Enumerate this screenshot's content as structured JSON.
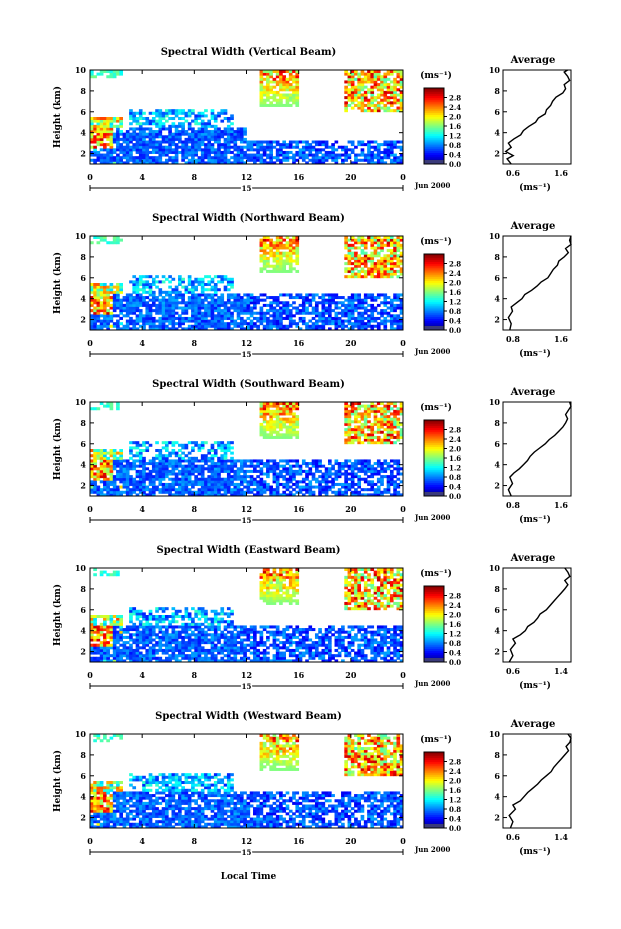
{
  "figure": {
    "xlabel": "Local Time",
    "date_label": "Jun 2000",
    "day_label": "15",
    "ylabel": "Height (km)",
    "avg_title": "Average",
    "units": "(ms⁻¹)"
  },
  "chart_data": [
    {
      "type": "heatmap",
      "title": "Spectral Width (Vertical Beam)",
      "xlim": [
        0,
        24
      ],
      "xticks": [
        "0",
        "4",
        "8",
        "12",
        "16",
        "20",
        "0"
      ],
      "ylim": [
        1,
        10
      ],
      "yticks": [
        "2",
        "4",
        "6",
        "8",
        "10"
      ],
      "colorbar": {
        "ticks": [
          "0.0",
          "0.4",
          "0.8",
          "1.2",
          "1.6",
          "2.0",
          "2.4",
          "2.8"
        ],
        "range": [
          0,
          3.2
        ]
      },
      "average_profile": {
        "xlim": [
          0.6,
          1.6
        ],
        "xticks": [
          "0.6",
          "1.6"
        ],
        "yticks": [
          "2",
          "4",
          "6",
          "8",
          "10"
        ],
        "points": [
          [
            0.72,
            1
          ],
          [
            0.66,
            1.5
          ],
          [
            0.75,
            1.8
          ],
          [
            0.64,
            2.2
          ],
          [
            0.72,
            2.6
          ],
          [
            0.68,
            3
          ],
          [
            0.76,
            3.4
          ],
          [
            0.86,
            3.8
          ],
          [
            0.9,
            4.2
          ],
          [
            0.98,
            4.6
          ],
          [
            1.08,
            5
          ],
          [
            1.12,
            5.4
          ],
          [
            1.22,
            5.8
          ],
          [
            1.24,
            6.2
          ],
          [
            1.3,
            6.6
          ],
          [
            1.33,
            7
          ],
          [
            1.38,
            7.4
          ],
          [
            1.48,
            7.8
          ],
          [
            1.52,
            8.2
          ],
          [
            1.5,
            8.6
          ],
          [
            1.58,
            9
          ],
          [
            1.55,
            9.4
          ],
          [
            1.5,
            9.8
          ],
          [
            1.55,
            10
          ]
        ]
      }
    },
    {
      "type": "heatmap",
      "title": "Spectral Width (Northward Beam)",
      "xlim": [
        0,
        24
      ],
      "xticks": [
        "0",
        "4",
        "8",
        "12",
        "16",
        "20",
        "0"
      ],
      "ylim": [
        1,
        10
      ],
      "yticks": [
        "2",
        "4",
        "6",
        "8",
        "10"
      ],
      "colorbar": {
        "ticks": [
          "0.0",
          "0.4",
          "0.8",
          "1.2",
          "1.6",
          "2.0",
          "2.4",
          "2.8"
        ],
        "range": [
          0,
          3.2
        ]
      },
      "average_profile": {
        "xlim": [
          0.6,
          1.6
        ],
        "xticks": [
          "0.8",
          "1.6"
        ],
        "yticks": [
          "2",
          "4",
          "6",
          "8",
          "10"
        ],
        "points": [
          [
            0.7,
            1
          ],
          [
            0.72,
            1.6
          ],
          [
            0.68,
            2.2
          ],
          [
            0.74,
            2.8
          ],
          [
            0.72,
            3.2
          ],
          [
            0.8,
            3.6
          ],
          [
            0.88,
            4
          ],
          [
            0.92,
            4.4
          ],
          [
            1.02,
            4.8
          ],
          [
            1.1,
            5.2
          ],
          [
            1.16,
            5.6
          ],
          [
            1.26,
            6
          ],
          [
            1.3,
            6.4
          ],
          [
            1.34,
            6.8
          ],
          [
            1.4,
            7.2
          ],
          [
            1.42,
            7.6
          ],
          [
            1.5,
            8
          ],
          [
            1.56,
            8.4
          ],
          [
            1.52,
            8.8
          ],
          [
            1.6,
            9.2
          ],
          [
            1.58,
            9.6
          ],
          [
            1.6,
            10
          ]
        ]
      }
    },
    {
      "type": "heatmap",
      "title": "Spectral Width (Southward Beam)",
      "xlim": [
        0,
        24
      ],
      "xticks": [
        "0",
        "4",
        "8",
        "12",
        "16",
        "20",
        "0"
      ],
      "ylim": [
        1,
        10
      ],
      "yticks": [
        "2",
        "4",
        "6",
        "8",
        "10"
      ],
      "colorbar": {
        "ticks": [
          "0.0",
          "0.4",
          "0.8",
          "1.2",
          "1.6",
          "2.0",
          "2.4",
          "2.8"
        ],
        "range": [
          0,
          3.2
        ]
      },
      "average_profile": {
        "xlim": [
          0.6,
          1.6
        ],
        "xticks": [
          "0.8",
          "1.6"
        ],
        "yticks": [
          "2",
          "4",
          "6",
          "8",
          "10"
        ],
        "points": [
          [
            0.72,
            1
          ],
          [
            0.68,
            1.6
          ],
          [
            0.74,
            2.2
          ],
          [
            0.7,
            2.8
          ],
          [
            0.76,
            3.2
          ],
          [
            0.84,
            3.6
          ],
          [
            0.9,
            4
          ],
          [
            0.96,
            4.4
          ],
          [
            1.0,
            4.8
          ],
          [
            1.06,
            5.2
          ],
          [
            1.14,
            5.6
          ],
          [
            1.22,
            6
          ],
          [
            1.28,
            6.4
          ],
          [
            1.36,
            6.8
          ],
          [
            1.42,
            7.2
          ],
          [
            1.48,
            7.6
          ],
          [
            1.52,
            8
          ],
          [
            1.55,
            8.4
          ],
          [
            1.52,
            8.8
          ],
          [
            1.56,
            9.2
          ],
          [
            1.6,
            9.6
          ],
          [
            1.58,
            10
          ]
        ]
      }
    },
    {
      "type": "heatmap",
      "title": "Spectral Width (Eastward Beam)",
      "xlim": [
        0,
        24
      ],
      "xticks": [
        "0",
        "4",
        "8",
        "12",
        "16",
        "20",
        "0"
      ],
      "ylim": [
        1,
        10
      ],
      "yticks": [
        "2",
        "4",
        "6",
        "8",
        "10"
      ],
      "colorbar": {
        "ticks": [
          "0.0",
          "0.4",
          "0.8",
          "1.2",
          "1.6",
          "2.0",
          "2.4",
          "2.8"
        ],
        "range": [
          0,
          3.2
        ]
      },
      "average_profile": {
        "xlim": [
          0.5,
          1.6
        ],
        "xticks": [
          "0.6",
          "1.4"
        ],
        "yticks": [
          "2",
          "4",
          "6",
          "8",
          "10"
        ],
        "points": [
          [
            0.6,
            1
          ],
          [
            0.66,
            1.6
          ],
          [
            0.62,
            2.2
          ],
          [
            0.7,
            2.8
          ],
          [
            0.66,
            3.2
          ],
          [
            0.78,
            3.6
          ],
          [
            0.86,
            4
          ],
          [
            0.9,
            4.4
          ],
          [
            1.0,
            4.8
          ],
          [
            1.06,
            5.2
          ],
          [
            1.1,
            5.6
          ],
          [
            1.2,
            6
          ],
          [
            1.26,
            6.4
          ],
          [
            1.32,
            6.8
          ],
          [
            1.38,
            7.2
          ],
          [
            1.44,
            7.6
          ],
          [
            1.5,
            8
          ],
          [
            1.55,
            8.4
          ],
          [
            1.5,
            8.8
          ],
          [
            1.58,
            9.2
          ],
          [
            1.55,
            9.6
          ],
          [
            1.5,
            10
          ]
        ]
      }
    },
    {
      "type": "heatmap",
      "title": "Spectral Width (Westward Beam)",
      "xlim": [
        0,
        24
      ],
      "xticks": [
        "0",
        "4",
        "8",
        "12",
        "16",
        "20",
        "0"
      ],
      "ylim": [
        1,
        10
      ],
      "yticks": [
        "2",
        "4",
        "6",
        "8",
        "10"
      ],
      "colorbar": {
        "ticks": [
          "0.0",
          "0.4",
          "0.8",
          "1.2",
          "1.6",
          "2.0",
          "2.4",
          "2.8"
        ],
        "range": [
          0,
          3.2
        ]
      },
      "average_profile": {
        "xlim": [
          0.5,
          1.6
        ],
        "xticks": [
          "0.6",
          "1.4"
        ],
        "yticks": [
          "2",
          "4",
          "6",
          "8",
          "10"
        ],
        "points": [
          [
            0.62,
            1
          ],
          [
            0.66,
            1.6
          ],
          [
            0.6,
            2.2
          ],
          [
            0.7,
            2.8
          ],
          [
            0.66,
            3.2
          ],
          [
            0.78,
            3.6
          ],
          [
            0.84,
            4
          ],
          [
            0.9,
            4.4
          ],
          [
            0.98,
            4.8
          ],
          [
            1.06,
            5.2
          ],
          [
            1.12,
            5.6
          ],
          [
            1.2,
            6
          ],
          [
            1.28,
            6.4
          ],
          [
            1.32,
            6.8
          ],
          [
            1.38,
            7.2
          ],
          [
            1.44,
            7.6
          ],
          [
            1.5,
            8
          ],
          [
            1.56,
            8.4
          ],
          [
            1.52,
            8.8
          ],
          [
            1.58,
            9.2
          ],
          [
            1.6,
            9.6
          ],
          [
            1.55,
            10
          ]
        ]
      }
    }
  ]
}
